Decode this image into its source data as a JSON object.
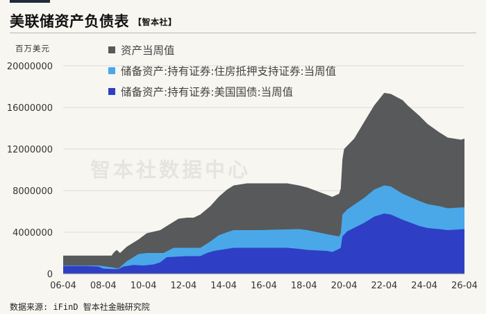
{
  "header": {
    "title": "美联储资产负债表",
    "tag": "【智本社】"
  },
  "unit_label": "百万美元",
  "watermark": "智本社数据中心",
  "source": "数据来源: iFinD 智本社金融研究院",
  "chart_data": {
    "type": "area",
    "x_ticks": [
      "06-04",
      "08-04",
      "10-04",
      "12-04",
      "14-04",
      "16-04",
      "18-04",
      "20-04",
      "22-04",
      "24-04",
      "26-04"
    ],
    "y_ticks": [
      "0",
      "4000000",
      "8000000",
      "12000000",
      "16000000",
      "20000000"
    ],
    "ylim": [
      0,
      20000000
    ],
    "grid": true,
    "legend_position": "top-left",
    "series": [
      {
        "name": "资产当周值",
        "color": "#58595b",
        "points": [
          [
            "06-04",
            1750000
          ],
          [
            "07-04",
            1750000
          ],
          [
            "08-01",
            1750000
          ],
          [
            "08-09",
            1750000
          ],
          [
            "08-10",
            2000000
          ],
          [
            "08-12",
            2300000
          ],
          [
            "09-02",
            2000000
          ],
          [
            "09-06",
            2600000
          ],
          [
            "10-01",
            3300000
          ],
          [
            "10-06",
            3900000
          ],
          [
            "11-02",
            4200000
          ],
          [
            "11-08",
            4800000
          ],
          [
            "12-01",
            5300000
          ],
          [
            "12-06",
            5400000
          ],
          [
            "12-10",
            5400000
          ],
          [
            "13-02",
            5700000
          ],
          [
            "13-08",
            6500000
          ],
          [
            "14-01",
            7400000
          ],
          [
            "14-06",
            8100000
          ],
          [
            "14-10",
            8500000
          ],
          [
            "15-06",
            8700000
          ],
          [
            "17-06",
            8700000
          ],
          [
            "18-01",
            8500000
          ],
          [
            "18-06",
            8300000
          ],
          [
            "19-04",
            7700000
          ],
          [
            "19-09",
            7400000
          ],
          [
            "20-01",
            7700000
          ],
          [
            "20-02",
            8200000
          ],
          [
            "20-03",
            11000000
          ],
          [
            "20-04",
            12000000
          ],
          [
            "20-10",
            13000000
          ],
          [
            "21-04",
            14600000
          ],
          [
            "21-10",
            16200000
          ],
          [
            "22-04",
            17400000
          ],
          [
            "22-08",
            17300000
          ],
          [
            "23-03",
            16700000
          ],
          [
            "23-06",
            16200000
          ],
          [
            "24-01",
            15200000
          ],
          [
            "24-06",
            14400000
          ],
          [
            "25-01",
            13600000
          ],
          [
            "25-06",
            13100000
          ],
          [
            "25-10",
            13000000
          ],
          [
            "26-02",
            12900000
          ],
          [
            "26-04",
            13000000
          ]
        ]
      },
      {
        "name": "储备资产:持有证券:住房抵押支持证券:当周值",
        "color": "#4aa8e8",
        "points": [
          [
            "06-04",
            800000
          ],
          [
            "08-01",
            800000
          ],
          [
            "08-10",
            600000
          ],
          [
            "09-01",
            500000
          ],
          [
            "09-06",
            1200000
          ],
          [
            "10-01",
            1900000
          ],
          [
            "10-06",
            2000000
          ],
          [
            "11-04",
            2000000
          ],
          [
            "11-10",
            2500000
          ],
          [
            "12-06",
            2500000
          ],
          [
            "13-02",
            2500000
          ],
          [
            "13-08",
            3100000
          ],
          [
            "14-01",
            3700000
          ],
          [
            "14-06",
            4000000
          ],
          [
            "14-10",
            4200000
          ],
          [
            "16-01",
            4200000
          ],
          [
            "18-01",
            4300000
          ],
          [
            "18-06",
            4200000
          ],
          [
            "19-06",
            3800000
          ],
          [
            "20-01",
            3600000
          ],
          [
            "20-02",
            3900000
          ],
          [
            "20-03",
            5700000
          ],
          [
            "20-06",
            6200000
          ],
          [
            "21-04",
            7300000
          ],
          [
            "21-10",
            8100000
          ],
          [
            "22-04",
            8500000
          ],
          [
            "22-08",
            8400000
          ],
          [
            "23-03",
            7700000
          ],
          [
            "24-01",
            7000000
          ],
          [
            "24-06",
            6700000
          ],
          [
            "25-01",
            6500000
          ],
          [
            "25-06",
            6300000
          ],
          [
            "26-04",
            6400000
          ]
        ]
      },
      {
        "name": "储备资产:持有证券:美国国债:当周值",
        "color": "#2e3fc6",
        "points": [
          [
            "06-04",
            750000
          ],
          [
            "07-06",
            750000
          ],
          [
            "08-01",
            700000
          ],
          [
            "08-04",
            500000
          ],
          [
            "08-10",
            450000
          ],
          [
            "09-01",
            450000
          ],
          [
            "09-04",
            700000
          ],
          [
            "09-10",
            850000
          ],
          [
            "10-04",
            800000
          ],
          [
            "10-10",
            900000
          ],
          [
            "11-02",
            1100000
          ],
          [
            "11-06",
            1600000
          ],
          [
            "12-06",
            1700000
          ],
          [
            "13-02",
            1700000
          ],
          [
            "13-06",
            2000000
          ],
          [
            "13-10",
            2200000
          ],
          [
            "14-06",
            2400000
          ],
          [
            "14-10",
            2500000
          ],
          [
            "17-06",
            2500000
          ],
          [
            "18-01",
            2400000
          ],
          [
            "18-06",
            2300000
          ],
          [
            "19-06",
            2200000
          ],
          [
            "19-09",
            2100000
          ],
          [
            "20-01",
            2400000
          ],
          [
            "20-02",
            2500000
          ],
          [
            "20-03",
            3600000
          ],
          [
            "20-06",
            4100000
          ],
          [
            "21-04",
            4900000
          ],
          [
            "21-10",
            5500000
          ],
          [
            "22-04",
            5800000
          ],
          [
            "22-08",
            5700000
          ],
          [
            "23-03",
            5200000
          ],
          [
            "24-01",
            4600000
          ],
          [
            "24-06",
            4400000
          ],
          [
            "25-01",
            4300000
          ],
          [
            "25-06",
            4200000
          ],
          [
            "26-04",
            4300000
          ]
        ]
      }
    ]
  }
}
